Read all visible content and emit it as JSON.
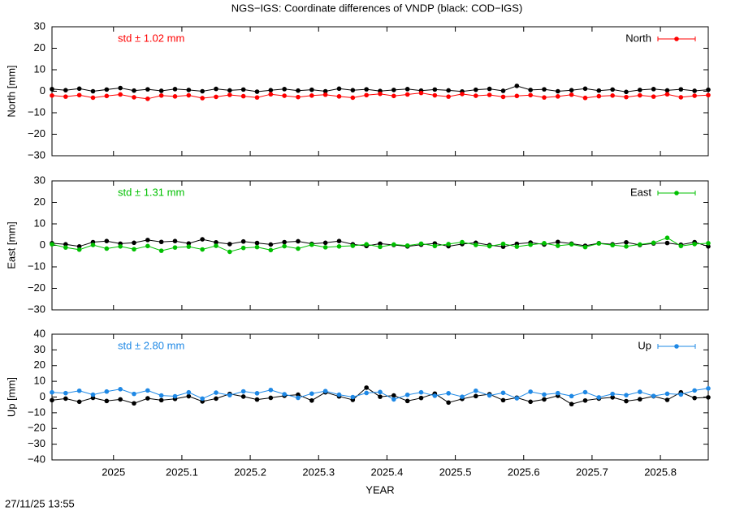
{
  "title": "NGS−IGS: Coordinate differences of VNDP (black: COD−IGS)",
  "timestamp": "27/11/25 13:55",
  "chart_data": [
    {
      "type": "scatter",
      "ylabel": "North [mm]",
      "annotation": "std ± 1.02 mm",
      "legend": "upper right",
      "grid": false,
      "xlim": [
        2024.91,
        2025.87
      ],
      "xticks": [
        2025,
        2025.1,
        2025.2,
        2025.3,
        2025.4,
        2025.5,
        2025.6,
        2025.7,
        2025.8
      ],
      "ylim": [
        -30,
        30
      ],
      "yticks": [
        {
          "value": -30,
          "label": "−30"
        },
        {
          "value": -20,
          "label": "−20"
        },
        {
          "value": -10,
          "label": "−10"
        },
        0,
        10,
        20,
        30
      ],
      "x": [
        2024.91,
        2024.93,
        2024.95,
        2024.97,
        2024.99,
        2025.01,
        2025.03,
        2025.05,
        2025.07,
        2025.09,
        2025.11,
        2025.13,
        2025.15,
        2025.17,
        2025.19,
        2025.21,
        2025.23,
        2025.25,
        2025.27,
        2025.29,
        2025.31,
        2025.33,
        2025.35,
        2025.37,
        2025.39,
        2025.41,
        2025.43,
        2025.45,
        2025.47,
        2025.49,
        2025.51,
        2025.53,
        2025.55,
        2025.57,
        2025.59,
        2025.61,
        2025.63,
        2025.65,
        2025.67,
        2025.69,
        2025.71,
        2025.73,
        2025.75,
        2025.77,
        2025.79,
        2025.81,
        2025.83,
        2025.85,
        2025.87
      ],
      "series": [
        {
          "color": "#000000",
          "values": [
            1,
            0.5,
            1.2,
            0,
            0.8,
            1.5,
            0.3,
            0.9,
            0.2,
            1,
            0.6,
            0,
            1.1,
            0.4,
            0.8,
            -0.2,
            0.5,
            1,
            0.3,
            0.7,
            0,
            1.2,
            0.5,
            0.9,
            0.1,
            0.6,
            1,
            0.3,
            0.8,
            0.4,
            -0.1,
            0.7,
            1.1,
            0.2,
            2.5,
            0.6,
            0.9,
            0,
            0.5,
            1.2,
            0.3,
            0.8,
            -0.3,
            0.6,
            1,
            0.4,
            0.9,
            0.2,
            0.7
          ]
        },
        {
          "name": "North",
          "color": "#ff0000",
          "values": [
            -2,
            -2.5,
            -1.8,
            -3,
            -2.2,
            -1.5,
            -2.8,
            -3.5,
            -2,
            -2.4,
            -1.9,
            -3.2,
            -2.6,
            -1.7,
            -2.3,
            -2.9,
            -1.4,
            -2.1,
            -2.7,
            -2,
            -1.6,
            -2.4,
            -3,
            -1.8,
            -1.2,
            -2.2,
            -1.5,
            -0.8,
            -1.9,
            -2.5,
            -1.3,
            -2.1,
            -1.7,
            -2.6,
            -2.2,
            -1.8,
            -2.9,
            -2.4,
            -1.6,
            -3.1,
            -2.3,
            -2,
            -2.7,
            -1.9,
            -2.5,
            -1.4,
            -2.8,
            -2.1,
            -1.8
          ]
        }
      ]
    },
    {
      "type": "scatter",
      "ylabel": "East [mm]",
      "annotation": "std ± 1.31 mm",
      "legend": "upper right",
      "grid": false,
      "xlim": [
        2024.91,
        2025.87
      ],
      "xticks": [
        2025,
        2025.1,
        2025.2,
        2025.3,
        2025.4,
        2025.5,
        2025.6,
        2025.7,
        2025.8
      ],
      "ylim": [
        -30,
        30
      ],
      "yticks": [
        {
          "value": -30,
          "label": "−30"
        },
        {
          "value": -20,
          "label": "−20"
        },
        {
          "value": -10,
          "label": "−10"
        },
        0,
        10,
        20,
        30
      ],
      "x": [
        2024.91,
        2024.93,
        2024.95,
        2024.97,
        2024.99,
        2025.01,
        2025.03,
        2025.05,
        2025.07,
        2025.09,
        2025.11,
        2025.13,
        2025.15,
        2025.17,
        2025.19,
        2025.21,
        2025.23,
        2025.25,
        2025.27,
        2025.29,
        2025.31,
        2025.33,
        2025.35,
        2025.37,
        2025.39,
        2025.41,
        2025.43,
        2025.45,
        2025.47,
        2025.49,
        2025.51,
        2025.53,
        2025.55,
        2025.57,
        2025.59,
        2025.61,
        2025.63,
        2025.65,
        2025.67,
        2025.69,
        2025.71,
        2025.73,
        2025.75,
        2025.77,
        2025.79,
        2025.81,
        2025.83,
        2025.85,
        2025.87
      ],
      "series": [
        {
          "color": "#000000",
          "values": [
            1,
            0.5,
            -0.5,
            1.5,
            2,
            0.8,
            1.2,
            2.5,
            1.6,
            2,
            0.9,
            2.8,
            1.4,
            0.6,
            1.8,
            1.1,
            0.4,
            1.5,
            1.9,
            0.7,
            1.2,
            2,
            0.5,
            -0.3,
            0.8,
            0.2,
            -0.5,
            0.3,
            0.9,
            -0.4,
            0.6,
            1.2,
            0.1,
            -0.6,
            0.7,
            1.3,
            0.4,
            1.6,
            0.8,
            -0.2,
            1,
            0.5,
            1.4,
            0.2,
            0.9,
            1.1,
            0.3,
            1.5,
            -0.5
          ]
        },
        {
          "name": "East",
          "color": "#00c000",
          "values": [
            0.5,
            -1,
            -2,
            0.2,
            -1.5,
            -0.5,
            -1.8,
            -0.3,
            -2.5,
            -1,
            -0.6,
            -1.9,
            -0.2,
            -3,
            -1.2,
            -0.8,
            -2.2,
            -0.4,
            -1.5,
            0.3,
            -0.9,
            -0.5,
            -0.2,
            0.5,
            -0.7,
            0.4,
            -0.1,
            0.8,
            -0.3,
            0.6,
            1.5,
            0.2,
            -0.4,
            0.7,
            -0.6,
            0.3,
            1,
            -0.2,
            0.5,
            -0.8,
            0.9,
            0.1,
            -0.5,
            0.4,
            1.2,
            3.5,
            -0.3,
            0.6,
            1
          ]
        }
      ]
    },
    {
      "type": "scatter",
      "ylabel": "Up [mm]",
      "xlabel": "YEAR",
      "annotation": "std ± 2.80 mm",
      "legend": "upper right",
      "grid": false,
      "xlim": [
        2024.91,
        2025.87
      ],
      "xticks": [
        2025,
        2025.1,
        2025.2,
        2025.3,
        2025.4,
        2025.5,
        2025.6,
        2025.7,
        2025.8
      ],
      "ylim": [
        -40,
        40
      ],
      "yticks": [
        {
          "value": -40,
          "label": "−40"
        },
        {
          "value": -30,
          "label": "−30"
        },
        {
          "value": -20,
          "label": "−20"
        },
        {
          "value": -10,
          "label": "−10"
        },
        0,
        10,
        20,
        30,
        40
      ],
      "x": [
        2024.91,
        2024.93,
        2024.95,
        2024.97,
        2024.99,
        2025.01,
        2025.03,
        2025.05,
        2025.07,
        2025.09,
        2025.11,
        2025.13,
        2025.15,
        2025.17,
        2025.19,
        2025.21,
        2025.23,
        2025.25,
        2025.27,
        2025.29,
        2025.31,
        2025.33,
        2025.35,
        2025.37,
        2025.39,
        2025.41,
        2025.43,
        2025.45,
        2025.47,
        2025.49,
        2025.51,
        2025.53,
        2025.55,
        2025.57,
        2025.59,
        2025.61,
        2025.63,
        2025.65,
        2025.67,
        2025.69,
        2025.71,
        2025.73,
        2025.75,
        2025.77,
        2025.79,
        2025.81,
        2025.83,
        2025.85,
        2025.87
      ],
      "series": [
        {
          "color": "#000000",
          "values": [
            -2,
            -1,
            -3,
            -0.5,
            -2.5,
            -1.5,
            -4,
            -0.8,
            -2,
            -1.2,
            0.5,
            -2.8,
            -1,
            2,
            0.3,
            -1.6,
            -0.5,
            0.8,
            1.5,
            -2.2,
            3,
            0.4,
            -1.8,
            6,
            0.2,
            1,
            -2.5,
            -0.6,
            2.2,
            -3.5,
            -1.2,
            0.6,
            1.8,
            -2,
            -0.4,
            -3,
            -1.5,
            0.8,
            -4.5,
            -2.2,
            -1,
            -0.2,
            -2.6,
            -1.4,
            0.5,
            -1.8,
            3,
            -0.6,
            -0.2
          ]
        },
        {
          "name": "Up",
          "color": "#1e88e5",
          "values": [
            3,
            2.5,
            4,
            1.5,
            3.5,
            5,
            2,
            4.2,
            1,
            0.5,
            3,
            -1,
            2.8,
            1.2,
            3.6,
            2.4,
            4.5,
            1.8,
            -0.5,
            2.2,
            3.8,
            1.5,
            0,
            2.6,
            3.2,
            -1.5,
            1.4,
            3,
            0.8,
            2.4,
            0.2,
            4,
            1,
            2.7,
            -0.8,
            3.4,
            1.6,
            2.5,
            0.6,
            3.1,
            -0.2,
            2,
            1.2,
            3.3,
            0.7,
            2.1,
            1.6,
            4.2,
            5.5
          ]
        }
      ]
    }
  ]
}
